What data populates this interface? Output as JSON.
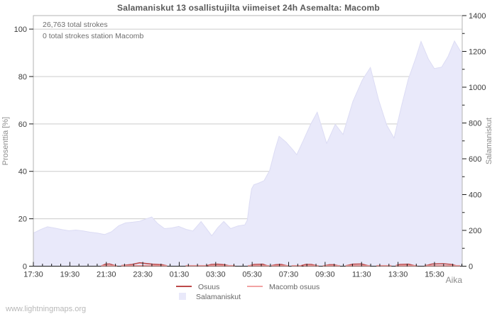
{
  "title": "Salamaniskut 13 osallistujilta viimeiset 24h Asemalta: Macomb",
  "watermark": "www.lightningmaps.org",
  "annotations": {
    "line1": "26,763 total strokes",
    "line2": "0 total strokes station Macomb"
  },
  "colors": {
    "area_fill": "#e9e9fa",
    "area_edge": "#dcdcf4",
    "osuus_line": "#bd4a4a",
    "macomb_line": "#f2a3a3",
    "grid": "#cccccc",
    "frame": "#b3b3b3",
    "axis_line": "#1a1a1a",
    "tick_text": "#3c3c3c",
    "muted_text": "#8c8c8c"
  },
  "chart_data": {
    "type": "area",
    "title": "Salamaniskut 13 osallistujilta viimeiset 24h Asemalta: Macomb",
    "grid": true,
    "legend_position": "bottom",
    "x": {
      "label": "Aika",
      "tick_labels": [
        "17:30",
        "19:30",
        "21:30",
        "23:30",
        "01:30",
        "03:30",
        "05:30",
        "07:30",
        "09:30",
        "11:30",
        "13:30",
        "15:30"
      ],
      "tick_interval_hours": 2,
      "total_hours": 23.52,
      "minor_tick_hours": 0.5
    },
    "y_left": {
      "label": "Prosenttia  [%]",
      "ticks": [
        0,
        20,
        40,
        60,
        80,
        100
      ],
      "range_at_frame": [
        0,
        105.7
      ]
    },
    "y_right": {
      "label": "Salamaniskut",
      "ticks": [
        0,
        200,
        400,
        600,
        800,
        1000,
        1200,
        1400
      ],
      "minor_step": 100,
      "range": [
        0,
        1400
      ]
    },
    "series": [
      {
        "name": "Salamaniskut",
        "type": "area",
        "axis": "right",
        "points": [
          [
            0.0,
            185
          ],
          [
            0.017,
            205
          ],
          [
            0.033,
            220
          ],
          [
            0.05,
            213
          ],
          [
            0.066,
            205
          ],
          [
            0.083,
            198
          ],
          [
            0.099,
            202
          ],
          [
            0.116,
            197
          ],
          [
            0.132,
            190
          ],
          [
            0.149,
            185
          ],
          [
            0.166,
            177
          ],
          [
            0.182,
            192
          ],
          [
            0.199,
            226
          ],
          [
            0.215,
            242
          ],
          [
            0.232,
            246
          ],
          [
            0.248,
            251
          ],
          [
            0.265,
            266
          ],
          [
            0.276,
            275
          ],
          [
            0.29,
            238
          ],
          [
            0.306,
            210
          ],
          [
            0.323,
            214
          ],
          [
            0.339,
            222
          ],
          [
            0.356,
            206
          ],
          [
            0.372,
            197
          ],
          [
            0.391,
            249
          ],
          [
            0.402,
            215
          ],
          [
            0.416,
            170
          ],
          [
            0.43,
            215
          ],
          [
            0.444,
            250
          ],
          [
            0.46,
            210
          ],
          [
            0.477,
            225
          ],
          [
            0.493,
            231
          ],
          [
            0.499,
            258
          ],
          [
            0.504,
            355
          ],
          [
            0.509,
            432
          ],
          [
            0.514,
            455
          ],
          [
            0.526,
            465
          ],
          [
            0.538,
            478
          ],
          [
            0.551,
            535
          ],
          [
            0.563,
            648
          ],
          [
            0.573,
            726
          ],
          [
            0.589,
            694
          ],
          [
            0.606,
            648
          ],
          [
            0.614,
            623
          ],
          [
            0.629,
            700
          ],
          [
            0.646,
            790
          ],
          [
            0.662,
            860
          ],
          [
            0.684,
            686
          ],
          [
            0.704,
            793
          ],
          [
            0.722,
            736
          ],
          [
            0.745,
            920
          ],
          [
            0.767,
            1040
          ],
          [
            0.786,
            1110
          ],
          [
            0.805,
            930
          ],
          [
            0.824,
            788
          ],
          [
            0.841,
            716
          ],
          [
            0.858,
            890
          ],
          [
            0.874,
            1043
          ],
          [
            0.891,
            1158
          ],
          [
            0.904,
            1256
          ],
          [
            0.921,
            1158
          ],
          [
            0.935,
            1104
          ],
          [
            0.952,
            1112
          ],
          [
            0.967,
            1172
          ],
          [
            0.982,
            1258
          ],
          [
            0.995,
            1205
          ],
          [
            1.0,
            1195
          ]
        ]
      },
      {
        "name": "Osuus",
        "type": "line",
        "axis": "left",
        "segments": [
          [
            [
              0.16,
              0
            ],
            [
              0.168,
              0.6
            ],
            [
              0.178,
              0.7
            ],
            [
              0.19,
              0
            ]
          ],
          [
            [
              0.205,
              0
            ],
            [
              0.23,
              0.5
            ],
            [
              0.248,
              1.2
            ],
            [
              0.262,
              0.9
            ],
            [
              0.278,
              0.6
            ],
            [
              0.3,
              0.4
            ],
            [
              0.31,
              0
            ]
          ],
          [
            [
              0.405,
              0
            ],
            [
              0.415,
              0.5
            ],
            [
              0.43,
              0.6
            ],
            [
              0.445,
              0.4
            ],
            [
              0.455,
              0
            ]
          ],
          [
            [
              0.505,
              0
            ],
            [
              0.515,
              0.5
            ],
            [
              0.535,
              0.6
            ],
            [
              0.545,
              0
            ]
          ],
          [
            [
              0.555,
              0
            ],
            [
              0.565,
              0.4
            ],
            [
              0.578,
              0.5
            ],
            [
              0.59,
              0
            ]
          ],
          [
            [
              0.625,
              0
            ],
            [
              0.635,
              0.5
            ],
            [
              0.648,
              0.5
            ],
            [
              0.66,
              0
            ]
          ],
          [
            [
              0.68,
              0
            ],
            [
              0.69,
              0.4
            ],
            [
              0.7,
              0.4
            ],
            [
              0.71,
              0
            ]
          ],
          [
            [
              0.73,
              0
            ],
            [
              0.745,
              0.6
            ],
            [
              0.765,
              0.7
            ],
            [
              0.78,
              0
            ]
          ],
          [
            [
              0.845,
              0
            ],
            [
              0.855,
              0.5
            ],
            [
              0.875,
              0.6
            ],
            [
              0.888,
              0
            ]
          ],
          [
            [
              0.915,
              0
            ],
            [
              0.93,
              0.7
            ],
            [
              0.955,
              0.8
            ],
            [
              0.975,
              0.5
            ],
            [
              0.985,
              0
            ]
          ]
        ]
      },
      {
        "name": "Macomb osuus",
        "type": "line",
        "axis": "left",
        "segments": [
          [
            [
              0.158,
              0
            ],
            [
              0.195,
              0
            ]
          ],
          [
            [
              0.205,
              0
            ],
            [
              0.312,
              0
            ]
          ],
          [
            [
              0.355,
              0
            ],
            [
              0.405,
              0
            ]
          ],
          [
            [
              0.408,
              0
            ],
            [
              0.47,
              0
            ]
          ],
          [
            [
              0.5,
              0
            ],
            [
              0.55,
              0
            ]
          ],
          [
            [
              0.555,
              0
            ],
            [
              0.595,
              0
            ]
          ],
          [
            [
              0.602,
              0
            ],
            [
              0.625,
              0
            ]
          ],
          [
            [
              0.63,
              0
            ],
            [
              0.665,
              0
            ]
          ],
          [
            [
              0.675,
              0
            ],
            [
              0.715,
              0
            ]
          ],
          [
            [
              0.728,
              0
            ],
            [
              0.785,
              0
            ]
          ],
          [
            [
              0.8,
              0
            ],
            [
              0.835,
              0
            ]
          ],
          [
            [
              0.845,
              0
            ],
            [
              0.895,
              0
            ]
          ],
          [
            [
              0.912,
              0
            ],
            [
              0.995,
              0
            ]
          ]
        ]
      }
    ]
  }
}
